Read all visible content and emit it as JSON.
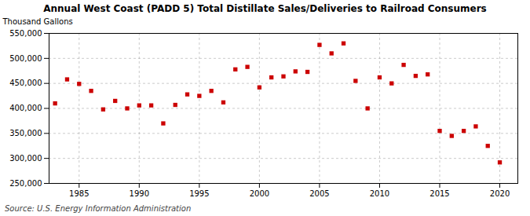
{
  "chart_data": {
    "type": "scatter",
    "title": "Annual West Coast (PADD 5) Total Distillate Sales/Deliveries to Railroad Consumers",
    "ylabel": "Thousand Gallons",
    "source": "Source: U.S. Energy Information Administration",
    "x": [
      1983,
      1984,
      1985,
      1986,
      1987,
      1988,
      1989,
      1990,
      1991,
      1992,
      1993,
      1994,
      1995,
      1996,
      1997,
      1998,
      1999,
      2000,
      2001,
      2002,
      2003,
      2004,
      2005,
      2006,
      2007,
      2008,
      2009,
      2010,
      2011,
      2012,
      2013,
      2014,
      2015,
      2016,
      2017,
      2018,
      2019,
      2020
    ],
    "values": [
      410000,
      458000,
      449000,
      435000,
      398000,
      415000,
      400000,
      406000,
      406000,
      370000,
      407000,
      428000,
      425000,
      435000,
      412000,
      478000,
      483000,
      442000,
      462000,
      464000,
      474000,
      473000,
      527000,
      510000,
      530000,
      455000,
      400000,
      462000,
      450000,
      487000,
      465000,
      468000,
      355000,
      345000,
      355000,
      364000,
      325000,
      292000
    ],
    "color": "#cc0000",
    "marker": "square",
    "grid": true,
    "xlim": [
      1982.5,
      2021.5
    ],
    "xticks": [
      1985,
      1990,
      1995,
      2000,
      2005,
      2010,
      2015,
      2020
    ],
    "ylim": [
      250000,
      550000
    ],
    "yticks": [
      {
        "value": 250000,
        "label": "250,000"
      },
      {
        "value": 300000,
        "label": "300,000"
      },
      {
        "value": 350000,
        "label": "350,000"
      },
      {
        "value": 400000,
        "label": "400,000"
      },
      {
        "value": 450000,
        "label": "450,000"
      },
      {
        "value": 500000,
        "label": "500,000"
      },
      {
        "value": 550000,
        "label": "550,000"
      }
    ]
  }
}
